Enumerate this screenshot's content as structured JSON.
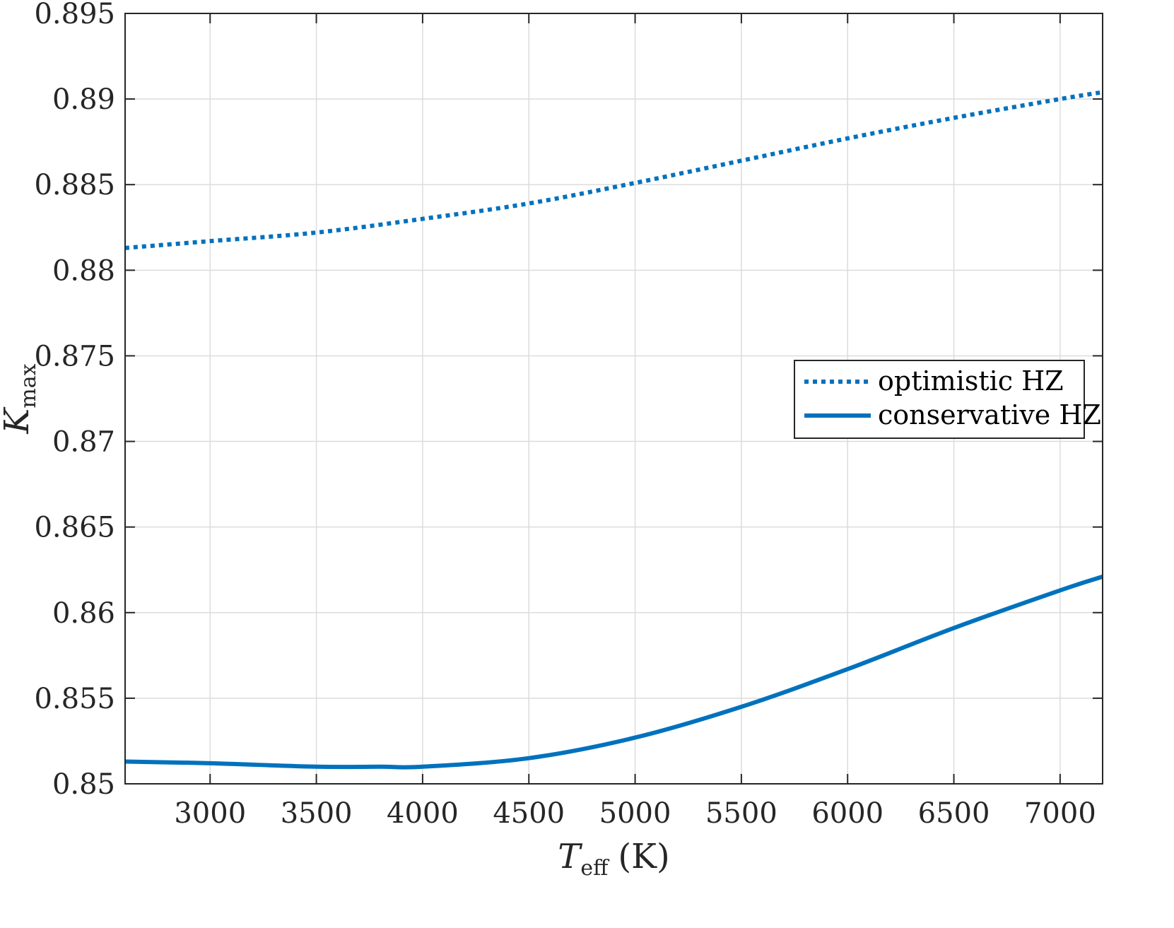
{
  "chart_data": {
    "type": "line",
    "xlabel": {
      "main": "T",
      "sub": "eff",
      "unit": "(K)"
    },
    "ylabel": {
      "main": "K",
      "sub": "max"
    },
    "xlim": [
      2600,
      7200
    ],
    "ylim": [
      0.85,
      0.895
    ],
    "x_ticks": [
      3000,
      3500,
      4000,
      4500,
      5000,
      5500,
      6000,
      6500,
      7000
    ],
    "x_tick_labels": [
      "3000",
      "3500",
      "4000",
      "4500",
      "5000",
      "5500",
      "6000",
      "6500",
      "7000"
    ],
    "y_ticks": [
      0.85,
      0.855,
      0.86,
      0.865,
      0.87,
      0.875,
      0.88,
      0.885,
      0.89,
      0.895
    ],
    "y_tick_labels": [
      "0.85",
      "0.855",
      "0.86",
      "0.865",
      "0.87",
      "0.875",
      "0.88",
      "0.885",
      "0.89",
      "0.895"
    ],
    "grid": true,
    "legend_position": "center-right",
    "series": [
      {
        "name": "optimistic HZ",
        "style": "dotted",
        "color": "#0072BD",
        "x": [
          2600,
          3000,
          3500,
          4000,
          4500,
          5000,
          5500,
          6000,
          6500,
          7000,
          7200
        ],
        "y": [
          0.8813,
          0.8817,
          0.8822,
          0.883,
          0.8839,
          0.8851,
          0.8864,
          0.8877,
          0.8889,
          0.89,
          0.8904
        ]
      },
      {
        "name": "conservative HZ",
        "style": "solid",
        "color": "#0072BD",
        "x": [
          2600,
          3000,
          3500,
          3800,
          4000,
          4500,
          5000,
          5500,
          6000,
          6500,
          7000,
          7200
        ],
        "y": [
          0.8513,
          0.8512,
          0.851,
          0.851,
          0.851,
          0.8515,
          0.8527,
          0.8545,
          0.8567,
          0.8591,
          0.8613,
          0.8621
        ]
      }
    ]
  }
}
